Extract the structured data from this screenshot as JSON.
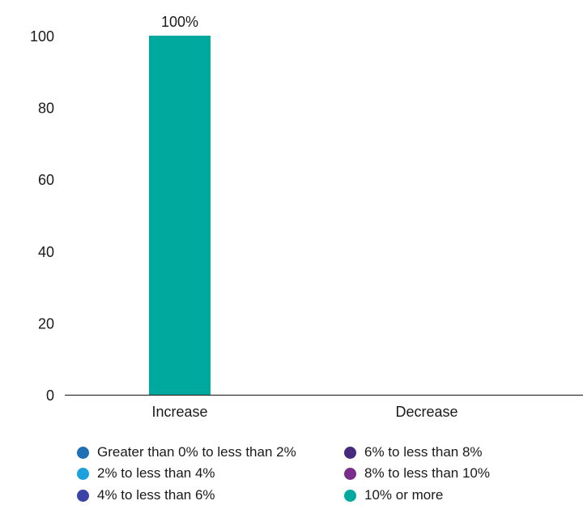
{
  "chart_data": {
    "type": "bar",
    "categories": [
      "Increase",
      "Decrease"
    ],
    "ylim": [
      0,
      100
    ],
    "yticks": [
      0,
      20,
      40,
      60,
      80,
      100
    ],
    "series": [
      {
        "name": "Greater than 0% to less than 2%",
        "color": "#1f6fb5",
        "values": [
          0,
          0
        ]
      },
      {
        "name": "2% to less than 4%",
        "color": "#1da1dd",
        "values": [
          0,
          0
        ]
      },
      {
        "name": "4% to less than 6%",
        "color": "#3b44a6",
        "values": [
          0,
          0
        ]
      },
      {
        "name": "6% to less than 8%",
        "color": "#452a7e",
        "values": [
          0,
          0
        ]
      },
      {
        "name": "8% to less than 10%",
        "color": "#7a2d8c",
        "values": [
          0,
          0
        ]
      },
      {
        "name": "10% or more",
        "color": "#00a99d",
        "values": [
          100,
          0
        ]
      }
    ],
    "data_labels": [
      "100%",
      ""
    ],
    "legend_position": "bottom",
    "grid": false
  }
}
